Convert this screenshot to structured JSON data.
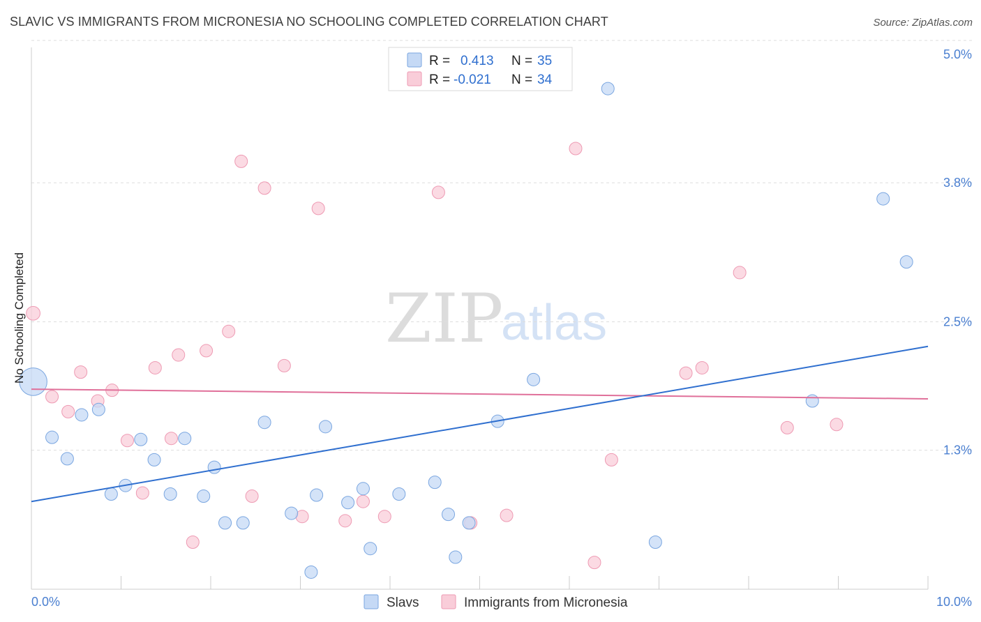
{
  "title": "SLAVIC VS IMMIGRANTS FROM MICRONESIA NO SCHOOLING COMPLETED CORRELATION CHART",
  "source": "Source: ZipAtlas.com",
  "watermark": {
    "zip": "ZIP",
    "atlas": "atlas"
  },
  "colors": {
    "slavs_fill": "#c5d9f5",
    "slavs_stroke": "#7aa6e0",
    "slavs_line": "#2f6fcf",
    "micro_fill": "#f9cdd9",
    "micro_stroke": "#ee9ab3",
    "micro_line": "#e0709a",
    "grid": "#dddddd",
    "accent_text": "#2f6fcf"
  },
  "legend": {
    "r_label": "R =",
    "n_label": "N =",
    "rows": [
      {
        "r": "0.413",
        "n": "35"
      },
      {
        "r": "-0.021",
        "n": "34"
      }
    ]
  },
  "bottom_legend": [
    "Slavs",
    "Immigrants from Micronesia"
  ],
  "chart_data": {
    "type": "scatter",
    "title": "SLAVIC VS IMMIGRANTS FROM MICRONESIA NO SCHOOLING COMPLETED CORRELATION CHART",
    "xlabel": "",
    "ylabel": "No Schooling Completed",
    "xlim": [
      0,
      10
    ],
    "ylim": [
      0,
      5.0
    ],
    "x_tick_labels": [
      "0.0%",
      "10.0%"
    ],
    "y_ticks": [
      1.3,
      2.5,
      3.8,
      5.0
    ],
    "y_tick_labels": [
      "1.3%",
      "2.5%",
      "3.8%",
      "5.0%"
    ],
    "grid": "horizontal dashed",
    "legend_position": "top-center",
    "series": [
      {
        "name": "Slavs",
        "r": 0.413,
        "n": 35,
        "trend": {
          "x0": 0,
          "y0": 0.82,
          "x1": 10,
          "y1": 2.27
        },
        "points": [
          [
            0.02,
            1.94,
            2.2
          ],
          [
            0.23,
            1.42,
            1
          ],
          [
            0.4,
            1.22,
            1
          ],
          [
            0.56,
            1.63,
            1
          ],
          [
            0.75,
            1.68,
            1
          ],
          [
            0.89,
            0.89,
            1
          ],
          [
            1.05,
            0.97,
            1
          ],
          [
            1.22,
            1.4,
            1
          ],
          [
            1.37,
            1.21,
            1
          ],
          [
            1.55,
            0.89,
            1
          ],
          [
            1.71,
            1.41,
            1
          ],
          [
            1.92,
            0.87,
            1
          ],
          [
            2.04,
            1.14,
            1
          ],
          [
            2.16,
            0.62,
            1
          ],
          [
            2.36,
            0.62,
            1
          ],
          [
            2.6,
            1.56,
            1
          ],
          [
            2.9,
            0.71,
            1
          ],
          [
            3.18,
            0.88,
            1
          ],
          [
            3.12,
            0.16,
            1
          ],
          [
            3.28,
            1.52,
            1
          ],
          [
            3.53,
            0.81,
            1
          ],
          [
            3.7,
            0.94,
            1
          ],
          [
            3.78,
            0.38,
            1
          ],
          [
            4.1,
            0.89,
            1
          ],
          [
            4.5,
            1.0,
            1
          ],
          [
            4.65,
            0.7,
            1
          ],
          [
            4.73,
            0.3,
            1
          ],
          [
            4.88,
            0.62,
            1
          ],
          [
            5.2,
            1.57,
            1
          ],
          [
            5.6,
            1.96,
            1
          ],
          [
            6.43,
            4.68,
            1
          ],
          [
            6.96,
            0.44,
            1
          ],
          [
            8.71,
            1.76,
            1
          ],
          [
            9.5,
            3.65,
            1
          ],
          [
            9.76,
            3.06,
            1
          ]
        ]
      },
      {
        "name": "Immigrants from Micronesia",
        "r": -0.021,
        "n": 34,
        "trend": {
          "x0": 0,
          "y0": 1.87,
          "x1": 10,
          "y1": 1.78
        },
        "points": [
          [
            0.02,
            2.58,
            1.1
          ],
          [
            0.23,
            1.8,
            1
          ],
          [
            0.41,
            1.66,
            1
          ],
          [
            0.55,
            2.03,
            1
          ],
          [
            0.74,
            1.76,
            1
          ],
          [
            0.9,
            1.86,
            1
          ],
          [
            1.07,
            1.39,
            1
          ],
          [
            1.24,
            0.9,
            1
          ],
          [
            1.38,
            2.07,
            1
          ],
          [
            1.56,
            1.41,
            1
          ],
          [
            1.64,
            2.19,
            1
          ],
          [
            1.8,
            0.44,
            1
          ],
          [
            1.95,
            2.23,
            1
          ],
          [
            2.2,
            2.41,
            1
          ],
          [
            2.34,
            4.0,
            1
          ],
          [
            2.46,
            0.87,
            1
          ],
          [
            2.6,
            3.75,
            1
          ],
          [
            2.82,
            2.09,
            1
          ],
          [
            3.02,
            0.68,
            1
          ],
          [
            3.2,
            3.56,
            1
          ],
          [
            3.5,
            0.64,
            1
          ],
          [
            3.7,
            0.82,
            1
          ],
          [
            3.94,
            0.68,
            1
          ],
          [
            4.54,
            3.71,
            1
          ],
          [
            4.9,
            0.62,
            1
          ],
          [
            5.3,
            0.69,
            1
          ],
          [
            6.07,
            4.12,
            1
          ],
          [
            6.28,
            0.25,
            1
          ],
          [
            6.47,
            1.21,
            1
          ],
          [
            7.3,
            2.02,
            1
          ],
          [
            7.48,
            2.07,
            1
          ],
          [
            7.9,
            2.96,
            1
          ],
          [
            8.43,
            1.51,
            1
          ],
          [
            8.98,
            1.54,
            1
          ]
        ]
      }
    ]
  }
}
